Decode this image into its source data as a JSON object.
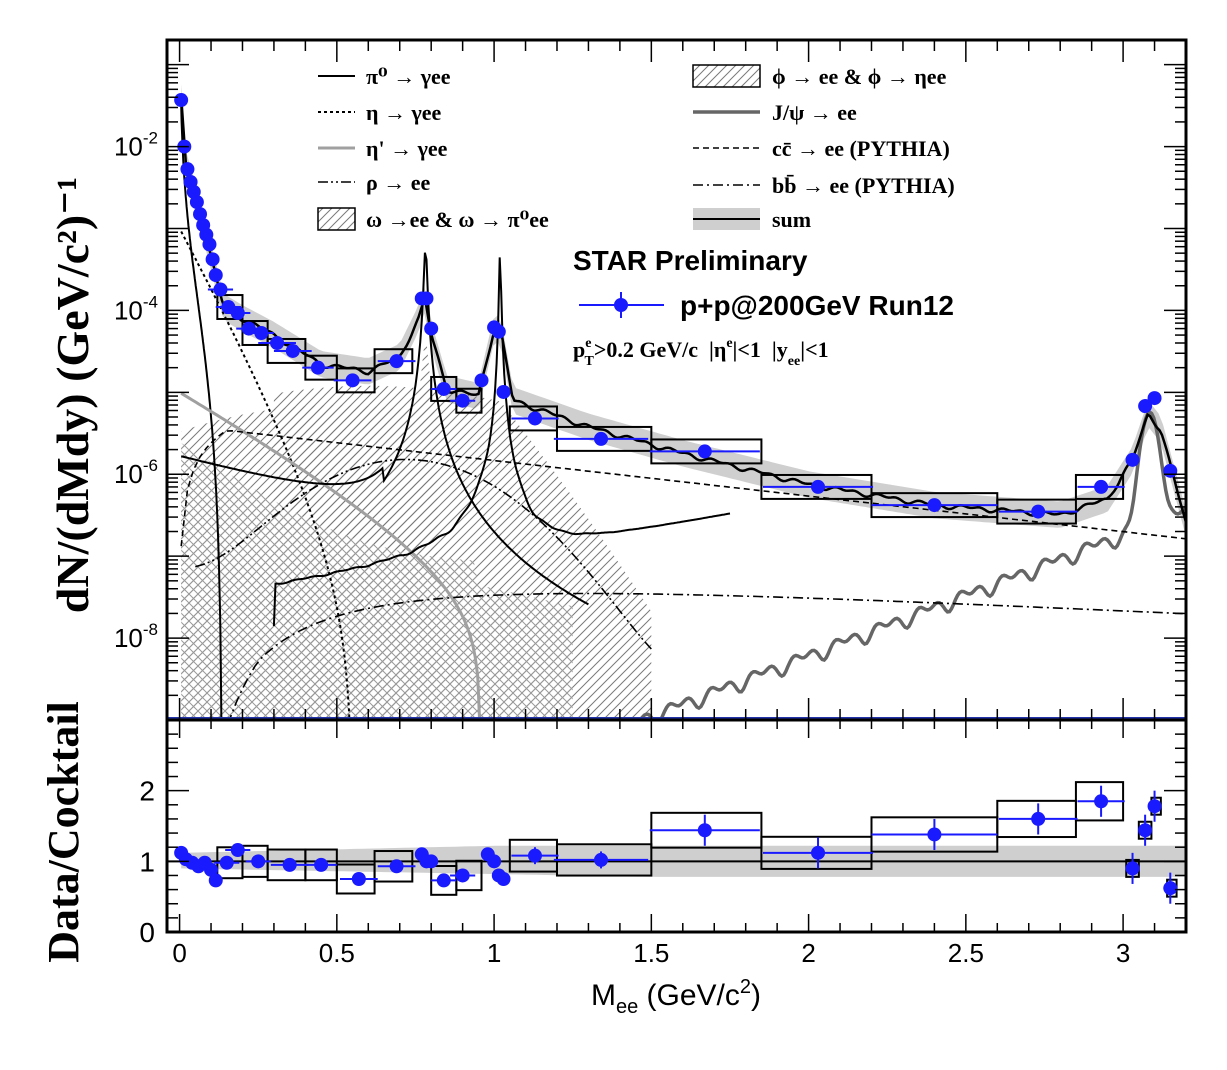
{
  "chart_data": [
    {
      "type": "line",
      "panel": "upper",
      "ylabel": "dN/(dMdy) (GeV/c²)⁻¹",
      "yscale": "log",
      "xlim": [
        -0.04,
        3.2
      ],
      "ylim": [
        1e-09,
        0.2
      ],
      "yticks": [
        {
          "v": 0.01,
          "mant": "10",
          "exp": "-2"
        },
        {
          "v": 0.0001,
          "mant": "10",
          "exp": "-4"
        },
        {
          "v": 1e-06,
          "mant": "10",
          "exp": "-6"
        },
        {
          "v": 1e-08,
          "mant": "10",
          "exp": "-8"
        }
      ],
      "annotations": {
        "preliminary": "STAR Preliminary",
        "data_label": "p+p@200GeV Run12",
        "cuts": {
          "pt_p": "p",
          "pt_sup": "e",
          "pt_sub": "T",
          "pt_rest": ">0.2 GeV/c  |η",
          "eta_sup": "e",
          "eta_rest": "|<1  |y",
          "y_sub": "ee",
          "y_rest": "|<1"
        }
      },
      "legend": [
        {
          "label": "π⁰ → γee",
          "style": "solid-black"
        },
        {
          "label": "η → γee",
          "style": "dotted-black"
        },
        {
          "label": "η' → γee",
          "style": "solid-gray"
        },
        {
          "label": "ρ → ee",
          "style": "dash-dot-dot"
        },
        {
          "label": "ω →ee & ω → π⁰ee",
          "style": "hatch"
        },
        {
          "label": "ϕ → ee & ϕ → ηee",
          "style": "hatch"
        },
        {
          "label": "J/ψ → ee",
          "style": "solid-darkgray"
        },
        {
          "label": "cc̄ → ee (PYTHIA)",
          "style": "dashed"
        },
        {
          "label": "bb̄ → ee (PYTHIA)",
          "style": "dash-dot"
        },
        {
          "label": "sum",
          "style": "band"
        }
      ],
      "series": [
        {
          "name": "p+p@200GeV Run12",
          "x": [
            0.005,
            0.015,
            0.025,
            0.035,
            0.045,
            0.055,
            0.065,
            0.075,
            0.085,
            0.095,
            0.105,
            0.115,
            0.13,
            0.155,
            0.185,
            0.22,
            0.26,
            0.31,
            0.36,
            0.44,
            0.55,
            0.69,
            0.77,
            0.785,
            0.8,
            0.84,
            0.9,
            0.96,
            1.0,
            1.015,
            1.03,
            1.13,
            1.34,
            1.67,
            2.03,
            2.4,
            2.73,
            2.93,
            3.03,
            3.07,
            3.1,
            3.15
          ],
          "y": [
            0.037,
            0.01,
            0.0053,
            0.0037,
            0.0028,
            0.0021,
            0.0015,
            0.0011,
            0.00084,
            0.00064,
            0.00042,
            0.00027,
            0.00018,
            0.00011,
            9.3e-05,
            6e-05,
            5.3e-05,
            4e-05,
            3.2e-05,
            2e-05,
            1.4e-05,
            2.4e-05,
            0.00014,
            0.00014,
            6e-05,
            1.1e-05,
            7.9e-06,
            1.4e-05,
            6.2e-05,
            5.5e-05,
            1.01e-05,
            4.8e-06,
            2.7e-06,
            1.9e-06,
            7e-07,
            4.2e-07,
            3.5e-07,
            7e-07,
            1.5e-06,
            6.8e-06,
            8.5e-06,
            1.1e-06
          ]
        }
      ]
    },
    {
      "type": "scatter",
      "panel": "lower",
      "xlabel": "M_ee (GeV/c²)",
      "xlabel_main": "M",
      "xlabel_sub": "ee",
      "xlabel_rest": " (GeV/c",
      "xlabel_sup": "2",
      "xlabel_close": ")",
      "ylabel": "Data/Cocktail",
      "xlim": [
        -0.04,
        3.2
      ],
      "ylim": [
        0,
        3
      ],
      "xticks": [
        "0",
        "0.5",
        "1",
        "1.5",
        "2",
        "2.5",
        "3"
      ],
      "yticks": [
        "0",
        "1",
        "2"
      ],
      "series": [
        {
          "name": "p+p@200GeV Run12",
          "x": [
            0.005,
            0.02,
            0.04,
            0.06,
            0.08,
            0.1,
            0.115,
            0.15,
            0.185,
            0.25,
            0.35,
            0.45,
            0.57,
            0.69,
            0.77,
            0.785,
            0.8,
            0.84,
            0.9,
            0.98,
            1.0,
            1.015,
            1.03,
            1.13,
            1.34,
            1.67,
            2.03,
            2.4,
            2.73,
            2.93,
            3.03,
            3.07,
            3.1,
            3.15
          ],
          "y": [
            1.12,
            1.03,
            0.98,
            0.93,
            0.98,
            0.88,
            0.73,
            0.98,
            1.16,
            1.0,
            0.95,
            0.95,
            0.75,
            0.93,
            1.1,
            1.0,
            1.0,
            0.73,
            0.8,
            1.1,
            1.0,
            0.8,
            0.75,
            1.08,
            1.02,
            1.44,
            1.12,
            1.38,
            1.6,
            1.85,
            0.9,
            1.44,
            1.78,
            0.62
          ]
        }
      ]
    }
  ]
}
